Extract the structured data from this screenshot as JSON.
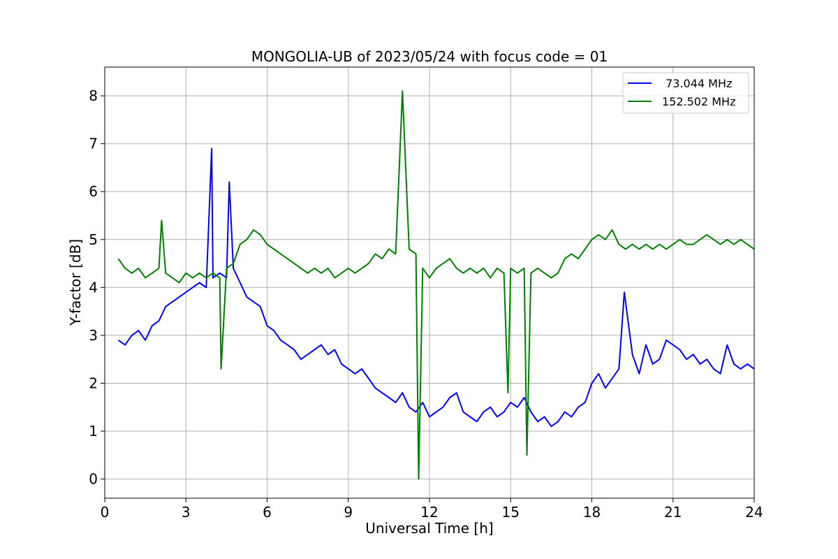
{
  "chart_data": {
    "type": "line",
    "title": "MONGOLIA-UB of 2023/05/24 with focus code = 01",
    "xlabel": "Universal Time [h]",
    "ylabel": "Y-factor [dB]",
    "xlim": [
      0,
      24
    ],
    "ylim": [
      -0.4,
      8.6
    ],
    "xticks": [
      0,
      3,
      6,
      9,
      12,
      15,
      18,
      21,
      24
    ],
    "yticks": [
      0,
      1,
      2,
      3,
      4,
      5,
      6,
      7,
      8
    ],
    "grid": true,
    "legend_position": "top-right",
    "series": [
      {
        "name": " 73.044 MHz",
        "color": "#0000ff",
        "x": [
          0.5,
          0.75,
          1.0,
          1.25,
          1.5,
          1.75,
          2.0,
          2.25,
          2.5,
          2.75,
          3.0,
          3.25,
          3.5,
          3.75,
          3.95,
          4.0,
          4.25,
          4.5,
          4.6,
          4.75,
          5.0,
          5.25,
          5.5,
          5.75,
          6.0,
          6.25,
          6.5,
          6.75,
          7.0,
          7.25,
          7.5,
          7.75,
          8.0,
          8.25,
          8.5,
          8.75,
          9.0,
          9.25,
          9.5,
          9.75,
          10.0,
          10.25,
          10.5,
          10.75,
          11.0,
          11.25,
          11.5,
          11.75,
          12.0,
          12.25,
          12.5,
          12.75,
          13.0,
          13.25,
          13.5,
          13.75,
          14.0,
          14.25,
          14.5,
          14.75,
          15.0,
          15.25,
          15.5,
          15.75,
          16.0,
          16.25,
          16.5,
          16.75,
          17.0,
          17.25,
          17.5,
          17.75,
          18.0,
          18.25,
          18.5,
          18.75,
          19.0,
          19.2,
          19.5,
          19.75,
          20.0,
          20.25,
          20.5,
          20.75,
          21.0,
          21.25,
          21.5,
          21.75,
          22.0,
          22.25,
          22.5,
          22.75,
          23.0,
          23.25,
          23.5,
          23.75,
          24.0
        ],
        "values": [
          2.9,
          2.8,
          3.0,
          3.1,
          2.9,
          3.2,
          3.3,
          3.6,
          3.7,
          3.8,
          3.9,
          4.0,
          4.1,
          4.0,
          6.9,
          4.2,
          4.3,
          4.2,
          6.2,
          4.4,
          4.1,
          3.8,
          3.7,
          3.6,
          3.2,
          3.1,
          2.9,
          2.8,
          2.7,
          2.5,
          2.6,
          2.7,
          2.8,
          2.6,
          2.7,
          2.4,
          2.3,
          2.2,
          2.3,
          2.1,
          1.9,
          1.8,
          1.7,
          1.6,
          1.8,
          1.5,
          1.4,
          1.6,
          1.3,
          1.4,
          1.5,
          1.7,
          1.8,
          1.4,
          1.3,
          1.2,
          1.4,
          1.5,
          1.3,
          1.4,
          1.6,
          1.5,
          1.7,
          1.4,
          1.2,
          1.3,
          1.1,
          1.2,
          1.4,
          1.3,
          1.5,
          1.6,
          2.0,
          2.2,
          1.9,
          2.1,
          2.3,
          3.9,
          2.6,
          2.2,
          2.8,
          2.4,
          2.5,
          2.9,
          2.8,
          2.7,
          2.5,
          2.6,
          2.4,
          2.5,
          2.3,
          2.2,
          2.8,
          2.4,
          2.3,
          2.4,
          2.3
        ]
      },
      {
        "name": "152.502 MHz",
        "color": "#008000",
        "x": [
          0.5,
          0.75,
          1.0,
          1.25,
          1.5,
          1.75,
          2.0,
          2.1,
          2.25,
          2.5,
          2.75,
          3.0,
          3.25,
          3.5,
          3.75,
          4.0,
          4.25,
          4.3,
          4.5,
          4.75,
          5.0,
          5.25,
          5.5,
          5.75,
          6.0,
          6.25,
          6.5,
          6.75,
          7.0,
          7.25,
          7.5,
          7.75,
          8.0,
          8.25,
          8.5,
          8.75,
          9.0,
          9.25,
          9.5,
          9.75,
          10.0,
          10.25,
          10.5,
          10.75,
          11.0,
          11.25,
          11.5,
          11.6,
          11.75,
          12.0,
          12.25,
          12.5,
          12.75,
          13.0,
          13.25,
          13.5,
          13.75,
          14.0,
          14.25,
          14.5,
          14.75,
          14.9,
          15.0,
          15.25,
          15.5,
          15.6,
          15.75,
          16.0,
          16.25,
          16.5,
          16.75,
          17.0,
          17.25,
          17.5,
          17.75,
          18.0,
          18.25,
          18.5,
          18.75,
          19.0,
          19.25,
          19.5,
          19.75,
          20.0,
          20.25,
          20.5,
          20.75,
          21.0,
          21.25,
          21.5,
          21.75,
          22.0,
          22.25,
          22.5,
          22.75,
          23.0,
          23.25,
          23.5,
          23.75,
          24.0
        ],
        "values": [
          4.6,
          4.4,
          4.3,
          4.4,
          4.2,
          4.3,
          4.4,
          5.4,
          4.3,
          4.2,
          4.1,
          4.3,
          4.2,
          4.3,
          4.2,
          4.3,
          4.2,
          2.3,
          4.4,
          4.5,
          4.9,
          5.0,
          5.2,
          5.1,
          4.9,
          4.8,
          4.7,
          4.6,
          4.5,
          4.4,
          4.3,
          4.4,
          4.3,
          4.4,
          4.2,
          4.3,
          4.4,
          4.3,
          4.4,
          4.5,
          4.7,
          4.6,
          4.8,
          4.7,
          8.1,
          4.8,
          4.7,
          0.0,
          4.4,
          4.2,
          4.4,
          4.5,
          4.6,
          4.4,
          4.3,
          4.4,
          4.3,
          4.4,
          4.2,
          4.4,
          4.3,
          1.8,
          4.4,
          4.3,
          4.4,
          0.5,
          4.3,
          4.4,
          4.3,
          4.2,
          4.3,
          4.6,
          4.7,
          4.6,
          4.8,
          5.0,
          5.1,
          5.0,
          5.2,
          4.9,
          4.8,
          4.9,
          4.8,
          4.9,
          4.8,
          4.9,
          4.8,
          4.9,
          5.0,
          4.9,
          4.9,
          5.0,
          5.1,
          5.0,
          4.9,
          5.0,
          4.9,
          5.0,
          4.9,
          4.8
        ]
      }
    ]
  }
}
